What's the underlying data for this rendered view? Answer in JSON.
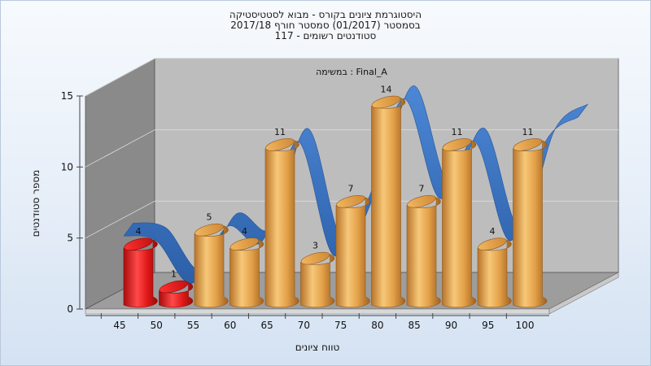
{
  "titles": [
    "היסטוגרמת ציונים בקורס - מבוא לסטטיסטיקה",
    "בסמסטר  (01/2017)  סמסטר חורף 2017/18",
    "סטודנטים רשומים - 117"
  ],
  "colors": {
    "failing_bar": "#e01818",
    "passing_bar": "#e3a048",
    "curve": "#3a73c4",
    "back_wall": "#bdbdbd",
    "side_wall": "#8a8a8a",
    "floor": "#9d9d9d"
  },
  "chart_data": {
    "type": "bar",
    "subtitle": "Final_A : במשימה",
    "xlabel": "טווח ציונים",
    "ylabel": "מספר סטודנטים",
    "ylim": [
      0,
      15
    ],
    "yticks": [
      0,
      5,
      10,
      15
    ],
    "x_ticks": [
      "45",
      "50",
      "55",
      "60",
      "65",
      "70",
      "75",
      "80",
      "85",
      "90",
      "95",
      "100"
    ],
    "bars": [
      {
        "bin": "45-50",
        "value": 4,
        "status": "fail"
      },
      {
        "bin": "50-55",
        "value": 1,
        "status": "fail"
      },
      {
        "bin": "55-60",
        "value": 5,
        "status": "pass"
      },
      {
        "bin": "60-65",
        "value": 4,
        "status": "pass"
      },
      {
        "bin": "65-70",
        "value": 11,
        "status": "pass"
      },
      {
        "bin": "70-75",
        "value": 3,
        "status": "pass"
      },
      {
        "bin": "75-80",
        "value": 7,
        "status": "pass"
      },
      {
        "bin": "80-85",
        "value": 14,
        "status": "pass"
      },
      {
        "bin": "85-90",
        "value": 7,
        "status": "pass"
      },
      {
        "bin": "90-95",
        "value": 11,
        "status": "pass"
      },
      {
        "bin": "95-100",
        "value": 4,
        "status": "pass"
      },
      {
        "bin": "100",
        "value": 11,
        "status": "pass"
      }
    ]
  }
}
